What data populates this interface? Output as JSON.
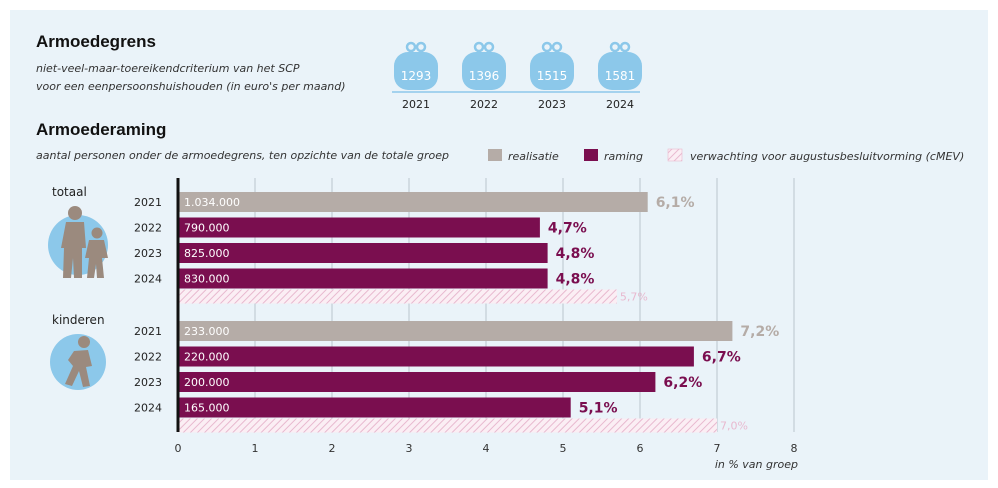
{
  "header": {
    "poverty_line_title": "Armoedegrens",
    "poverty_line_subtitle_1": "niet-veel-maar-toereikendcriterium van het SCP",
    "poverty_line_subtitle_2": "voor een eenpersoonshuishouden (in euro's per maand)",
    "forecast_title": "Armoederaming",
    "forecast_subtitle": "aantal personen onder de armoedegrens, ten opzichte van de totale groep"
  },
  "poverty_line": [
    {
      "year": "2021",
      "value": "1293"
    },
    {
      "year": "2022",
      "value": "1396"
    },
    {
      "year": "2023",
      "value": "1515"
    },
    {
      "year": "2024",
      "value": "1581"
    }
  ],
  "legend": {
    "realisatie": "realisatie",
    "raming": "raming",
    "verwachting": "verwachting voor augustusbesluitvorming (cMEV)"
  },
  "colors": {
    "realisatie": "#b5aca7",
    "raming": "#7a0e4f",
    "verwachting": "#e8b9cf",
    "icon": "#8cc8ea",
    "figure": "#9b8a7e"
  },
  "chart_data": {
    "type": "bar",
    "orientation": "horizontal",
    "xlabel": "in % van groep",
    "xlim": [
      0,
      8
    ],
    "xticks": [
      "0",
      "1",
      "2",
      "3",
      "4",
      "5",
      "6",
      "7",
      "8"
    ],
    "grid": true,
    "groups": [
      {
        "name": "totaal",
        "rows": [
          {
            "year": "2021",
            "type": "realisatie",
            "value": 6.1,
            "label": "6,1%",
            "count": "1.034.000"
          },
          {
            "year": "2022",
            "type": "raming",
            "value": 4.7,
            "label": "4,7%",
            "count": "790.000"
          },
          {
            "year": "2023",
            "type": "raming",
            "value": 4.8,
            "label": "4,8%",
            "count": "825.000"
          },
          {
            "year": "2024",
            "type": "raming",
            "value": 4.8,
            "label": "4,8%",
            "count": "830.000",
            "cmev_value": 5.7,
            "cmev_label": "5,7%"
          }
        ]
      },
      {
        "name": "kinderen",
        "rows": [
          {
            "year": "2021",
            "type": "realisatie",
            "value": 7.2,
            "label": "7,2%",
            "count": "233.000"
          },
          {
            "year": "2022",
            "type": "raming",
            "value": 6.7,
            "label": "6,7%",
            "count": "220.000"
          },
          {
            "year": "2023",
            "type": "raming",
            "value": 6.2,
            "label": "6,2%",
            "count": "200.000"
          },
          {
            "year": "2024",
            "type": "raming",
            "value": 5.1,
            "label": "5,1%",
            "count": "165.000",
            "cmev_value": 7.0,
            "cmev_label": "7,0%"
          }
        ]
      }
    ]
  }
}
